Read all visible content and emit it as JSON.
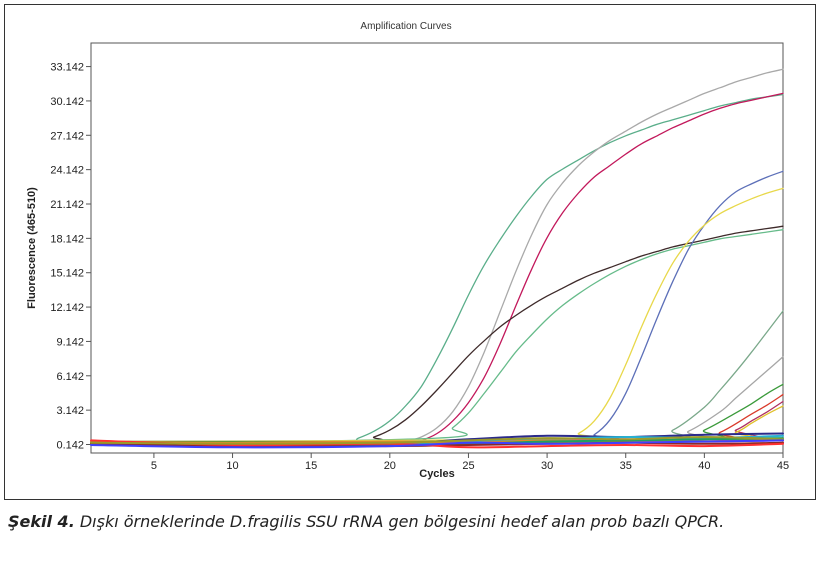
{
  "figure": {
    "caption_label": "Şekil 4.",
    "caption_text": "Dışkı örneklerinde D.fragilis SSU rRNA gen bölgesini hedef alan prob bazlı QPCR."
  },
  "chart_data": {
    "type": "line",
    "title": "Amplification Curves",
    "xlabel": "Cycles",
    "ylabel": "Fluorescence (465-510)",
    "xlim": [
      1,
      45
    ],
    "ylim": [
      -0.6,
      35.2
    ],
    "xticks": [
      5,
      10,
      15,
      20,
      25,
      30,
      35,
      40,
      45
    ],
    "yticks": [
      0.142,
      3.142,
      6.142,
      9.142,
      12.142,
      15.142,
      18.142,
      21.142,
      24.142,
      27.142,
      30.142,
      33.142
    ],
    "ytick_labels": [
      "0.142",
      "3.142",
      "6.142",
      "9.142",
      "12.142",
      "15.142",
      "18.142",
      "21.142",
      "24.142",
      "27.142",
      "30.142",
      "33.142"
    ],
    "grid": false,
    "legend": "none",
    "series": [
      {
        "color": "#5aae8a",
        "x": [
          1,
          10,
          17,
          18,
          19,
          20,
          21,
          22,
          23,
          24,
          25,
          26,
          27,
          28,
          29,
          30,
          31,
          32,
          33,
          34,
          35,
          36,
          37,
          38,
          39,
          40,
          41,
          42,
          43,
          44,
          45
        ],
        "values": [
          0.1,
          0.1,
          0.3,
          0.7,
          1.3,
          2.2,
          3.5,
          5.2,
          7.6,
          10.3,
          13.2,
          15.8,
          18.0,
          20.0,
          21.8,
          23.3,
          24.2,
          25.0,
          25.8,
          26.5,
          27.1,
          27.6,
          28.1,
          28.5,
          28.9,
          29.3,
          29.7,
          30.0,
          30.3,
          30.5,
          30.7
        ]
      },
      {
        "color": "#a9a9a9",
        "x": [
          1,
          20,
          21,
          22,
          23,
          24,
          25,
          26,
          27,
          28,
          29,
          30,
          31,
          32,
          33,
          34,
          35,
          36,
          37,
          38,
          39,
          40,
          41,
          42,
          43,
          44,
          45
        ],
        "values": [
          0.1,
          0.2,
          0.4,
          0.8,
          1.6,
          3.0,
          5.2,
          8.2,
          11.7,
          15.2,
          18.4,
          21.1,
          23.0,
          24.5,
          25.7,
          26.7,
          27.5,
          28.3,
          29.0,
          29.6,
          30.2,
          30.8,
          31.3,
          31.8,
          32.2,
          32.6,
          32.9
        ]
      },
      {
        "color": "#c2185b",
        "x": [
          1,
          21,
          22,
          23,
          24,
          25,
          26,
          27,
          28,
          29,
          30,
          31,
          32,
          33,
          34,
          35,
          36,
          37,
          38,
          39,
          40,
          41,
          42,
          43,
          44,
          45
        ],
        "values": [
          0.1,
          0.2,
          0.5,
          1.1,
          2.2,
          3.8,
          6.0,
          8.9,
          12.2,
          15.4,
          18.2,
          20.4,
          22.1,
          23.5,
          24.5,
          25.5,
          26.4,
          27.1,
          27.8,
          28.4,
          29.0,
          29.5,
          29.9,
          30.2,
          30.5,
          30.8
        ]
      },
      {
        "color": "#3e2a2a",
        "x": [
          1,
          18,
          19,
          20,
          21,
          22,
          23,
          24,
          25,
          26,
          27,
          28,
          29,
          30,
          31,
          32,
          33,
          34,
          35,
          36,
          37,
          38,
          39,
          40,
          41,
          42,
          43,
          44,
          45
        ],
        "values": [
          0.1,
          0.4,
          0.8,
          1.4,
          2.3,
          3.5,
          4.9,
          6.4,
          7.9,
          9.2,
          10.4,
          11.4,
          12.3,
          13.1,
          13.8,
          14.5,
          15.1,
          15.6,
          16.1,
          16.6,
          17.0,
          17.4,
          17.7,
          18.0,
          18.3,
          18.6,
          18.8,
          19.0,
          19.2
        ]
      },
      {
        "color": "#66bb8a",
        "x": [
          1,
          23,
          24,
          25,
          26,
          27,
          28,
          29,
          30,
          31,
          32,
          33,
          34,
          35,
          36,
          37,
          38,
          39,
          40,
          41,
          42,
          43,
          44,
          45
        ],
        "values": [
          0.1,
          0.7,
          1.6,
          2.9,
          4.6,
          6.4,
          8.2,
          9.7,
          11.1,
          12.3,
          13.3,
          14.2,
          15.0,
          15.7,
          16.3,
          16.8,
          17.2,
          17.5,
          17.8,
          18.1,
          18.3,
          18.5,
          18.7,
          18.9
        ]
      },
      {
        "color": "#5c6fb8",
        "x": [
          1,
          32,
          33,
          34,
          35,
          36,
          37,
          38,
          39,
          40,
          41,
          42,
          43,
          44,
          45
        ],
        "values": [
          0.3,
          0.5,
          1.0,
          2.3,
          4.6,
          7.8,
          11.2,
          14.4,
          17.2,
          19.3,
          21.0,
          22.2,
          22.9,
          23.5,
          24.0
        ]
      },
      {
        "color": "#e8d84a",
        "x": [
          1,
          31,
          32,
          33,
          34,
          35,
          36,
          37,
          38,
          39,
          40,
          41,
          42,
          43,
          44,
          45
        ],
        "values": [
          0.4,
          0.6,
          1.1,
          2.2,
          4.2,
          7.1,
          10.4,
          13.4,
          16.0,
          17.9,
          19.3,
          20.3,
          21.0,
          21.6,
          22.1,
          22.5
        ]
      },
      {
        "color": "#7aa88a",
        "x": [
          1,
          36,
          38,
          40,
          41,
          42,
          43,
          44,
          45
        ],
        "values": [
          0.4,
          0.5,
          1.4,
          3.4,
          4.9,
          6.5,
          8.2,
          10.0,
          11.8
        ]
      },
      {
        "color": "#a6a6a6",
        "x": [
          1,
          37,
          39,
          41,
          42,
          43,
          44,
          45
        ],
        "values": [
          0.4,
          0.5,
          1.3,
          3.0,
          4.2,
          5.4,
          6.6,
          7.8
        ]
      },
      {
        "color": "#3a9a3a",
        "x": [
          1,
          38,
          40,
          42,
          43,
          44,
          45
        ],
        "values": [
          0.4,
          0.5,
          1.4,
          2.9,
          3.7,
          4.6,
          5.4
        ]
      },
      {
        "color": "#d93a2a",
        "x": [
          1,
          39,
          41,
          43,
          44,
          45
        ],
        "values": [
          0.3,
          0.4,
          1.2,
          2.8,
          3.6,
          4.5
        ]
      },
      {
        "color": "#b03060",
        "x": [
          1,
          40,
          42,
          43,
          44,
          45
        ],
        "values": [
          0.3,
          0.4,
          1.4,
          2.2,
          3.0,
          3.9
        ]
      },
      {
        "color": "#e0c02a",
        "x": [
          1,
          40,
          42,
          43,
          44,
          45
        ],
        "values": [
          0.3,
          0.4,
          1.2,
          2.0,
          2.8,
          3.5
        ]
      },
      {
        "color": "#2a2a8a",
        "x": [
          1,
          10,
          20,
          25,
          30,
          35,
          40,
          45
        ],
        "values": [
          0.3,
          0.1,
          0.2,
          0.6,
          0.9,
          0.8,
          1.0,
          1.1
        ]
      },
      {
        "color": "#e040e0",
        "x": [
          1,
          10,
          20,
          25,
          30,
          35,
          40,
          45
        ],
        "values": [
          0.4,
          0.2,
          0.1,
          0.3,
          0.5,
          0.6,
          0.4,
          0.5
        ]
      },
      {
        "color": "#2ab0d0",
        "x": [
          1,
          10,
          20,
          25,
          30,
          35,
          40,
          45
        ],
        "values": [
          0.2,
          0.0,
          0.2,
          0.4,
          0.6,
          0.8,
          0.7,
          0.9
        ]
      },
      {
        "color": "#e08a2a",
        "x": [
          1,
          10,
          20,
          25,
          30,
          35,
          40,
          45
        ],
        "values": [
          0.4,
          0.3,
          0.4,
          0.3,
          0.5,
          0.4,
          0.6,
          0.5
        ]
      },
      {
        "color": "#20a060",
        "x": [
          1,
          10,
          20,
          25,
          30,
          35,
          40,
          45
        ],
        "values": [
          0.3,
          0.1,
          0.1,
          0.2,
          0.4,
          0.5,
          0.6,
          0.7
        ]
      },
      {
        "color": "#8a2a2a",
        "x": [
          1,
          10,
          20,
          25,
          30,
          35,
          40,
          45
        ],
        "values": [
          0.2,
          0.0,
          0.0,
          0.1,
          0.2,
          0.3,
          0.2,
          0.3
        ]
      },
      {
        "color": "#ff3030",
        "x": [
          1,
          10,
          20,
          25,
          30,
          35,
          40,
          45
        ],
        "values": [
          0.5,
          0.1,
          0.2,
          -0.1,
          0.0,
          0.1,
          0.0,
          0.2
        ]
      },
      {
        "color": "#9a9a2a",
        "x": [
          1,
          10,
          20,
          25,
          30,
          35,
          40,
          45
        ],
        "values": [
          0.3,
          0.2,
          0.3,
          0.5,
          0.7,
          0.6,
          0.8,
          0.6
        ]
      },
      {
        "color": "#4040ff",
        "x": [
          1,
          10,
          20,
          25,
          30,
          35,
          40,
          45
        ],
        "values": [
          0.1,
          -0.1,
          0.0,
          0.3,
          0.2,
          0.3,
          0.4,
          0.5
        ]
      }
    ]
  }
}
